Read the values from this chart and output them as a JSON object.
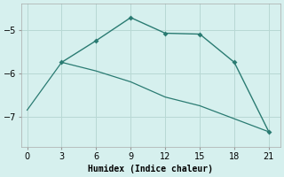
{
  "line1_x": [
    3,
    6,
    9,
    12,
    15,
    18,
    21
  ],
  "line1_y": [
    -5.75,
    -5.25,
    -4.72,
    -5.08,
    -5.1,
    -5.75,
    -7.35
  ],
  "line2_x": [
    0,
    3,
    6,
    9,
    12,
    15,
    18,
    21
  ],
  "line2_y": [
    -6.85,
    -5.75,
    -5.95,
    -6.2,
    -6.55,
    -6.75,
    -7.05,
    -7.35
  ],
  "color": "#2a7b72",
  "bgcolor": "#d6f0ee",
  "xlabel": "Humidex (Indice chaleur)",
  "xlim": [
    -0.5,
    22
  ],
  "ylim": [
    -7.7,
    -4.4
  ],
  "xticks": [
    0,
    3,
    6,
    9,
    12,
    15,
    18,
    21
  ],
  "yticks": [
    -7,
    -6,
    -5
  ],
  "grid_color": "#b8d8d4",
  "font_family": "monospace"
}
